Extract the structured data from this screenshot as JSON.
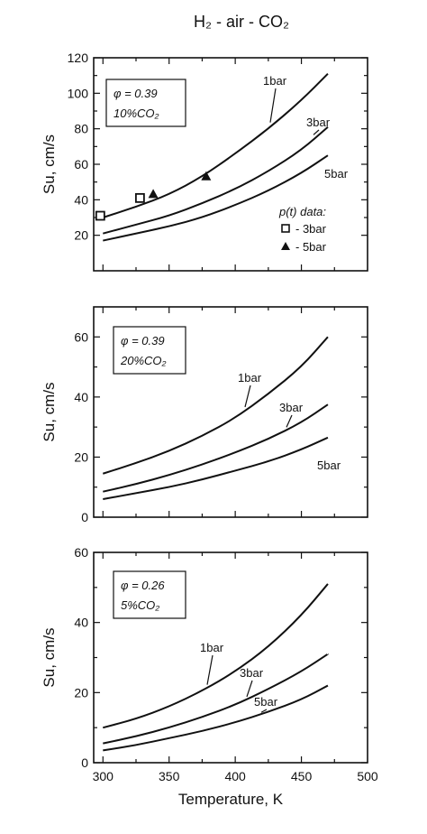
{
  "figure_title": "H₂ - air - CO₂",
  "chart_data": [
    {
      "type": "line",
      "xlabel": "",
      "ylabel": "Su, cm/s",
      "xlim": [
        293,
        500
      ],
      "ylim": [
        0,
        120
      ],
      "yticks": [
        20,
        40,
        60,
        80,
        100,
        120
      ],
      "box_lines": [
        "φ = 0.39",
        "10%CO₂"
      ],
      "series": [
        {
          "name": "1bar",
          "x": [
            300,
            325,
            350,
            375,
            400,
            425,
            450,
            470
          ],
          "y": [
            30,
            36,
            43,
            53,
            66,
            80,
            96,
            111
          ]
        },
        {
          "name": "3bar",
          "x": [
            300,
            325,
            350,
            375,
            400,
            425,
            450,
            470
          ],
          "y": [
            21,
            26,
            31,
            38,
            46,
            56,
            68,
            81
          ]
        },
        {
          "name": "5bar",
          "x": [
            300,
            325,
            350,
            375,
            400,
            425,
            450,
            470
          ],
          "y": [
            17,
            21,
            25,
            30,
            37,
            45,
            55,
            65
          ]
        }
      ],
      "markers": {
        "title": "p(t) data:",
        "entries": [
          {
            "name": "- 3bar",
            "shape": "square",
            "points": [
              [
                298,
                31
              ],
              [
                328,
                41
              ]
            ]
          },
          {
            "name": "- 5bar",
            "shape": "triangle",
            "points": [
              [
                338,
                43
              ],
              [
                378,
                53
              ]
            ]
          }
        ]
      }
    },
    {
      "type": "line",
      "xlabel": "",
      "ylabel": "Su, cm/s",
      "xlim": [
        293,
        500
      ],
      "ylim": [
        0,
        70
      ],
      "yticks": [
        0,
        20,
        40,
        60
      ],
      "box_lines": [
        "φ = 0.39",
        "20%CO₂"
      ],
      "series": [
        {
          "name": "1bar",
          "x": [
            300,
            325,
            350,
            375,
            400,
            425,
            450,
            470
          ],
          "y": [
            14.5,
            18,
            22,
            27,
            33,
            41,
            50,
            60
          ]
        },
        {
          "name": "3bar",
          "x": [
            300,
            325,
            350,
            375,
            400,
            425,
            450,
            470
          ],
          "y": [
            8.5,
            11,
            14,
            17.5,
            21.5,
            26,
            31.5,
            37.5
          ]
        },
        {
          "name": "5bar",
          "x": [
            300,
            325,
            350,
            375,
            400,
            425,
            450,
            470
          ],
          "y": [
            6,
            8,
            10,
            12.5,
            15.5,
            18.5,
            22.5,
            26.5
          ]
        }
      ]
    },
    {
      "type": "line",
      "xlabel": "Temperature, K",
      "ylabel": "Su, cm/s",
      "xlim": [
        293,
        500
      ],
      "ylim": [
        0,
        60
      ],
      "yticks": [
        0,
        20,
        40,
        60
      ],
      "xticks": [
        300,
        350,
        400,
        450,
        500
      ],
      "box_lines": [
        "φ = 0.26",
        "5%CO₂"
      ],
      "series": [
        {
          "name": "1bar",
          "x": [
            300,
            325,
            350,
            375,
            400,
            425,
            450,
            470
          ],
          "y": [
            10,
            12.5,
            16,
            20.5,
            26,
            33,
            42,
            51
          ]
        },
        {
          "name": "3bar",
          "x": [
            300,
            325,
            350,
            375,
            400,
            425,
            450,
            470
          ],
          "y": [
            5.5,
            7.5,
            10,
            13,
            16.5,
            21,
            26,
            31
          ]
        },
        {
          "name": "5bar",
          "x": [
            300,
            325,
            350,
            375,
            400,
            425,
            450,
            470
          ],
          "y": [
            3.5,
            5,
            7,
            9,
            11.5,
            14.5,
            18,
            22
          ]
        }
      ]
    }
  ]
}
